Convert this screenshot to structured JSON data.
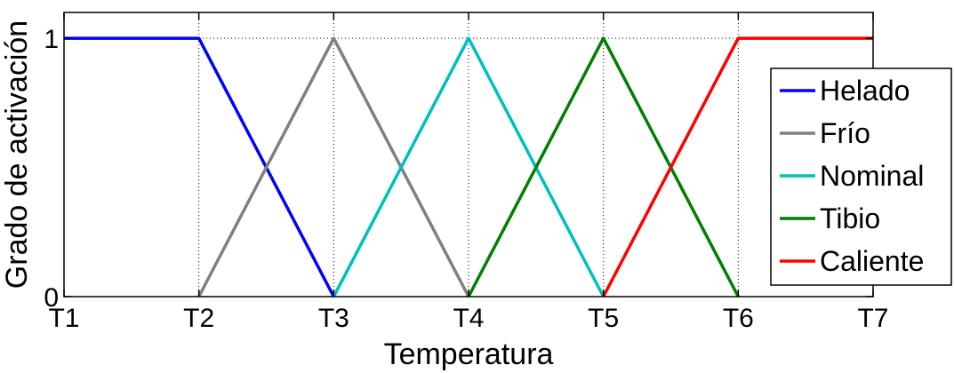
{
  "chart_data": {
    "type": "line",
    "title": "",
    "xlabel": "Temperatura",
    "ylabel": "Grado de activación",
    "categories": [
      "T1",
      "T2",
      "T3",
      "T4",
      "T5",
      "T6",
      "T7"
    ],
    "x": [
      1,
      2,
      3,
      4,
      5,
      6,
      7
    ],
    "xlim": [
      1,
      7
    ],
    "ylim": [
      0,
      1.1
    ],
    "yticks": [
      0,
      1
    ],
    "ytick_labels": [
      "0",
      "1"
    ],
    "grid": "dotted vertical lines at x ticks and horizontal line at y = 1",
    "legend_position": "right",
    "series": [
      {
        "name": "Helado",
        "color": "#0000ff",
        "points": [
          [
            1,
            1
          ],
          [
            2,
            1
          ],
          [
            3,
            0
          ]
        ]
      },
      {
        "name": "Frío",
        "color": "#808080",
        "points": [
          [
            2,
            0
          ],
          [
            3,
            1
          ],
          [
            4,
            0
          ]
        ]
      },
      {
        "name": "Nominal",
        "color": "#00bfbf",
        "points": [
          [
            3,
            0
          ],
          [
            4,
            1
          ],
          [
            5,
            0
          ]
        ]
      },
      {
        "name": "Tibio",
        "color": "#007f00",
        "points": [
          [
            4,
            0
          ],
          [
            5,
            1
          ],
          [
            6,
            0
          ]
        ]
      },
      {
        "name": "Caliente",
        "color": "#ff0000",
        "points": [
          [
            5,
            0
          ],
          [
            6,
            1
          ],
          [
            7,
            1
          ]
        ]
      }
    ]
  }
}
